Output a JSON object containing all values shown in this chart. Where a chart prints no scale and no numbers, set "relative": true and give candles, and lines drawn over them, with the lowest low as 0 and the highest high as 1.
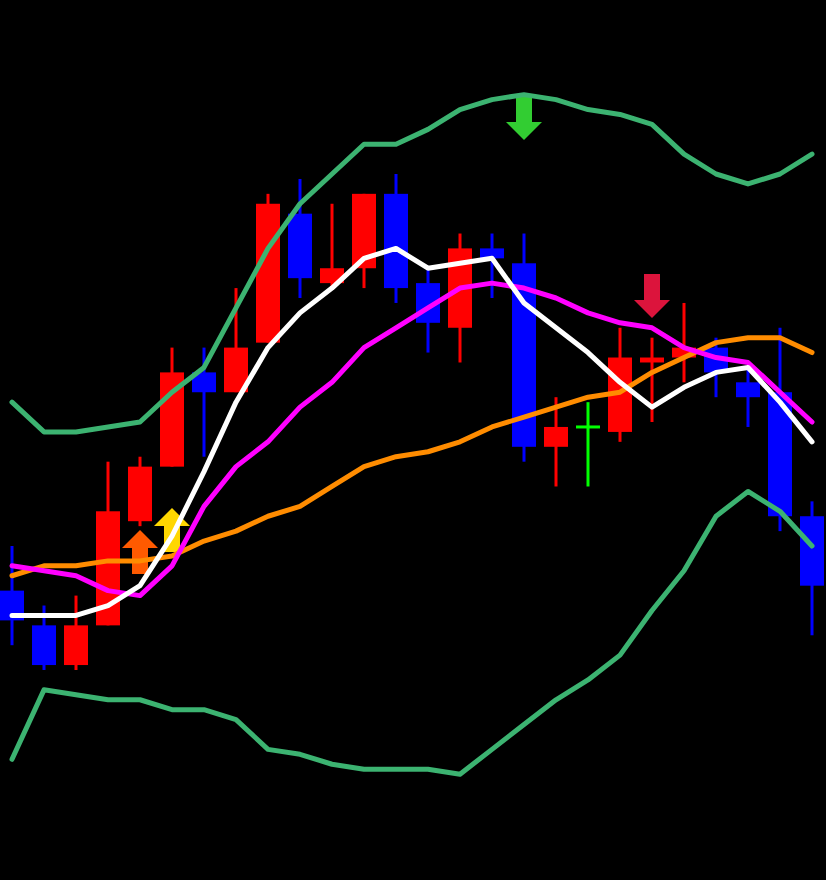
{
  "chart_data": {
    "type": "candlestick",
    "relative": true,
    "categories": [
      null,
      null,
      null,
      null,
      null,
      null,
      null,
      null,
      null,
      null,
      null,
      null,
      null,
      null,
      null,
      null,
      null,
      null,
      null,
      null,
      null,
      null,
      null,
      null,
      null,
      null
    ],
    "ohlc": [
      [
        0.16,
        0.25,
        0.05,
        0.1
      ],
      [
        0.09,
        0.13,
        0,
        0.01
      ],
      [
        0.01,
        0.15,
        0,
        0.09
      ],
      [
        0.09,
        0.42,
        0.09,
        0.32
      ],
      [
        0.3,
        0.43,
        0.29,
        0.41
      ],
      [
        0.41,
        0.65,
        0.41,
        0.6
      ],
      [
        0.6,
        0.65,
        0.43,
        0.56
      ],
      [
        0.56,
        0.77,
        0.56,
        0.65
      ],
      [
        0.66,
        0.96,
        0.66,
        0.94
      ],
      [
        0.92,
        0.99,
        0.75,
        0.79
      ],
      [
        0.78,
        0.94,
        0.77,
        0.81
      ],
      [
        0.81,
        0.96,
        0.77,
        0.96
      ],
      [
        0.96,
        1,
        0.74,
        0.77
      ],
      [
        0.78,
        0.81,
        0.64,
        0.7
      ],
      [
        0.69,
        0.88,
        0.62,
        0.85
      ],
      [
        0.85,
        0.88,
        0.75,
        0.83
      ],
      [
        0.82,
        0.88,
        0.42,
        0.45
      ],
      [
        0.45,
        0.55,
        0.37,
        0.49
      ],
      [
        0.49,
        0.54,
        0.37,
        0.49
      ],
      [
        0.48,
        0.69,
        0.46,
        0.63
      ],
      [
        0.62,
        0.67,
        0.5,
        0.63
      ],
      [
        0.63,
        0.74,
        0.58,
        0.65
      ],
      [
        0.65,
        0.67,
        0.55,
        0.6
      ],
      [
        0.58,
        0.61,
        0.49,
        0.55
      ],
      [
        0.56,
        0.69,
        0.28,
        0.31
      ],
      [
        0.31,
        0.34,
        0.07,
        0.17
      ]
    ],
    "colors": [
      "#0000ff",
      "#0000ff",
      "#ff0000",
      "#ff0000",
      "#ff0000",
      "#ff0000",
      "#0000ff",
      "#ff0000",
      "#ff0000",
      "#0000ff",
      "#ff0000",
      "#ff0000",
      "#0000ff",
      "#0000ff",
      "#ff0000",
      "#0000ff",
      "#0000ff",
      "#ff0000",
      "#00ff00",
      "#ff0000",
      "#ff0000",
      "#ff0000",
      "#0000ff",
      "#0000ff",
      "#0000ff",
      "#0000ff"
    ],
    "series": [
      {
        "type": "line",
        "color": "#3cb371",
        "values": [
          0.54,
          0.48,
          0.48,
          0.49,
          0.5,
          0.56,
          0.61,
          0.73,
          0.85,
          0.94,
          1.0,
          1.06,
          1.06,
          1.09,
          1.13,
          1.15,
          1.16,
          1.15,
          1.13,
          1.12,
          1.1,
          1.04,
          1.0,
          0.98,
          1.0,
          1.04
        ]
      },
      {
        "type": "line",
        "color": "#3cb371",
        "values": [
          -0.18,
          -0.04,
          -0.05,
          -0.06,
          -0.06,
          -0.08,
          -0.08,
          -0.1,
          -0.16,
          -0.17,
          -0.19,
          -0.2,
          -0.2,
          -0.2,
          -0.21,
          -0.16,
          -0.11,
          -0.06,
          -0.02,
          0.03,
          0.12,
          0.2,
          0.31,
          0.36,
          0.32,
          0.25
        ]
      },
      {
        "type": "line",
        "color": "#ff8c00",
        "values": [
          0.19,
          0.21,
          0.21,
          0.22,
          0.22,
          0.23,
          0.26,
          0.28,
          0.31,
          0.33,
          0.37,
          0.41,
          0.43,
          0.44,
          0.46,
          0.49,
          0.51,
          0.53,
          0.55,
          0.56,
          0.6,
          0.63,
          0.66,
          0.67,
          0.67,
          0.64
        ]
      },
      {
        "type": "line",
        "color": "#ff00ff",
        "values": [
          0.21,
          0.2,
          0.19,
          0.16,
          0.15,
          0.21,
          0.33,
          0.41,
          0.46,
          0.53,
          0.58,
          0.65,
          0.69,
          0.73,
          0.77,
          0.78,
          0.77,
          0.75,
          0.72,
          0.7,
          0.69,
          0.65,
          0.63,
          0.62,
          0.56,
          0.5
        ]
      },
      {
        "type": "line",
        "color": "#ffffff",
        "values": [
          0.11,
          0.11,
          0.11,
          0.13,
          0.17,
          0.27,
          0.4,
          0.54,
          0.65,
          0.72,
          0.77,
          0.83,
          0.85,
          0.81,
          0.82,
          0.83,
          0.74,
          0.69,
          0.64,
          0.58,
          0.53,
          0.57,
          0.6,
          0.61,
          0.54,
          0.46
        ]
      }
    ]
  }
}
